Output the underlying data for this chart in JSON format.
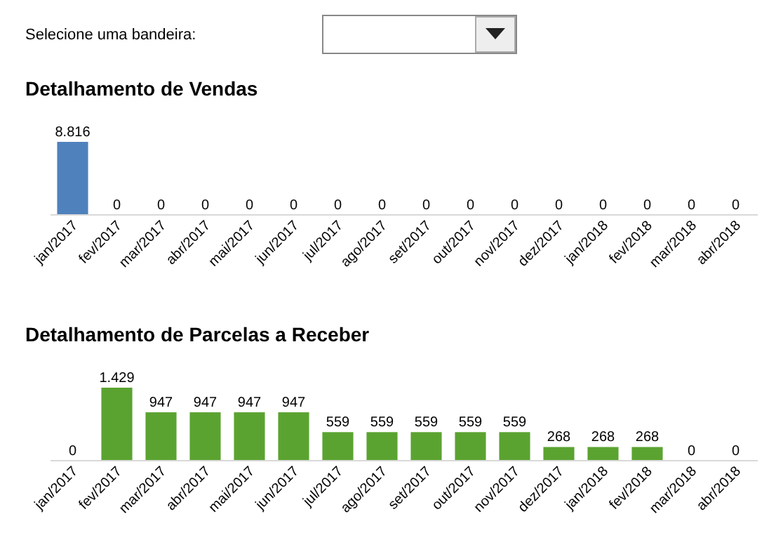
{
  "chart_data": [
    {
      "type": "bar",
      "title": "Detalhamento de Vendas",
      "annotations": [
        "Selecione uma bandeira:"
      ],
      "categories": [
        "jan/2017",
        "fev/2017",
        "mar/2017",
        "abr/2017",
        "mai/2017",
        "jun/2017",
        "jul/2017",
        "ago/2017",
        "set/2017",
        "out/2017",
        "nov/2017",
        "dez/2017",
        "jan/2018",
        "fev/2018",
        "mar/2018",
        "abr/2018"
      ],
      "values": [
        8816,
        0,
        0,
        0,
        0,
        0,
        0,
        0,
        0,
        0,
        0,
        0,
        0,
        0,
        0,
        0
      ],
      "value_labels": [
        "8.816",
        "0",
        "0",
        "0",
        "0",
        "0",
        "0",
        "0",
        "0",
        "0",
        "0",
        "0",
        "0",
        "0",
        "0",
        "0"
      ],
      "color": "#4f81bd",
      "tick_labels": "x"
    },
    {
      "type": "bar",
      "title": "Detalhamento de Parcelas a Receber",
      "categories": [
        "jan/2017",
        "fev/2017",
        "mar/2017",
        "abr/2017",
        "mai/2017",
        "jun/2017",
        "jul/2017",
        "ago/2017",
        "set/2017",
        "out/2017",
        "nov/2017",
        "dez/2017",
        "jan/2018",
        "fev/2018",
        "mar/2018",
        "abr/2018"
      ],
      "values": [
        0,
        1429,
        947,
        947,
        947,
        947,
        559,
        559,
        559,
        559,
        559,
        268,
        268,
        268,
        0,
        0
      ],
      "value_labels": [
        "0",
        "1.429",
        "947",
        "947",
        "947",
        "947",
        "559",
        "559",
        "559",
        "559",
        "559",
        "268",
        "268",
        "268",
        "0",
        "0"
      ],
      "color": "#5ba331",
      "tick_labels": "x"
    }
  ]
}
